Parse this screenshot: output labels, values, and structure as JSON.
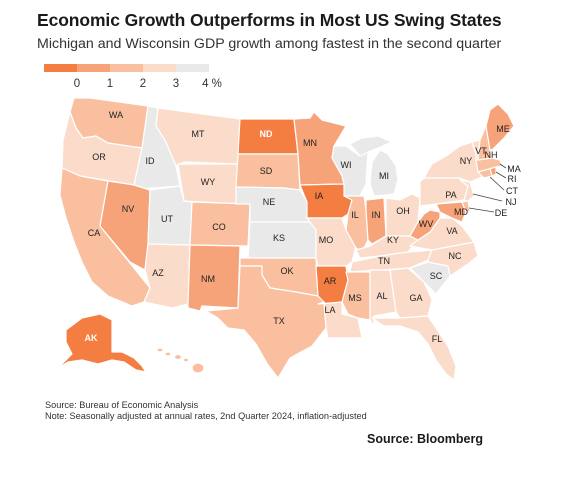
{
  "title": "Economic Growth Outperforms in Most US Swing States",
  "subtitle": "Michigan and Wisconsin GDP growth among fastest in the second quarter",
  "legend": {
    "labels": [
      "0",
      "1",
      "2",
      "3",
      "4 %"
    ],
    "colors": [
      "#f47d42",
      "#f7a37a",
      "#f9bf9f",
      "#fbdccb",
      "#e9e9e9"
    ]
  },
  "colors": {
    "c1": "#f47d42",
    "c2": "#f7a37a",
    "c3": "#f9bf9f",
    "c4": "#fbdccb",
    "c5": "#e9e9e9"
  },
  "states": {
    "WA": "WA",
    "OR": "OR",
    "CA": "CA",
    "ID": "ID",
    "NV": "NV",
    "UT": "UT",
    "AZ": "AZ",
    "MT": "MT",
    "WY": "WY",
    "CO": "CO",
    "NM": "NM",
    "ND": "ND",
    "SD": "SD",
    "NE": "NE",
    "KS": "KS",
    "OK": "OK",
    "TX": "TX",
    "MN": "MN",
    "IA": "IA",
    "MO": "MO",
    "AR": "AR",
    "LA": "LA",
    "WI": "WI",
    "IL": "IL",
    "MI": "MI",
    "IN": "IN",
    "OH": "OH",
    "KY": "KY",
    "TN": "TN",
    "MS": "MS",
    "AL": "AL",
    "GA": "GA",
    "FL": "FL",
    "SC": "SC",
    "NC": "NC",
    "VA": "VA",
    "WV": "WV",
    "MD": "MD",
    "DE": "DE",
    "PA": "PA",
    "NJ": "NJ",
    "NY": "NY",
    "CT": "CT",
    "RI": "RI",
    "MA": "MA",
    "VT": "VT",
    "NH": "NH",
    "ME": "ME",
    "AK": "AK"
  },
  "source": "Source: Bureau of Economic Analysis",
  "note": "Note: Seasonally adjusted at annual rates, 2nd Quarter 2024, inflation-adjusted",
  "credit": "Source: Bloomberg"
}
